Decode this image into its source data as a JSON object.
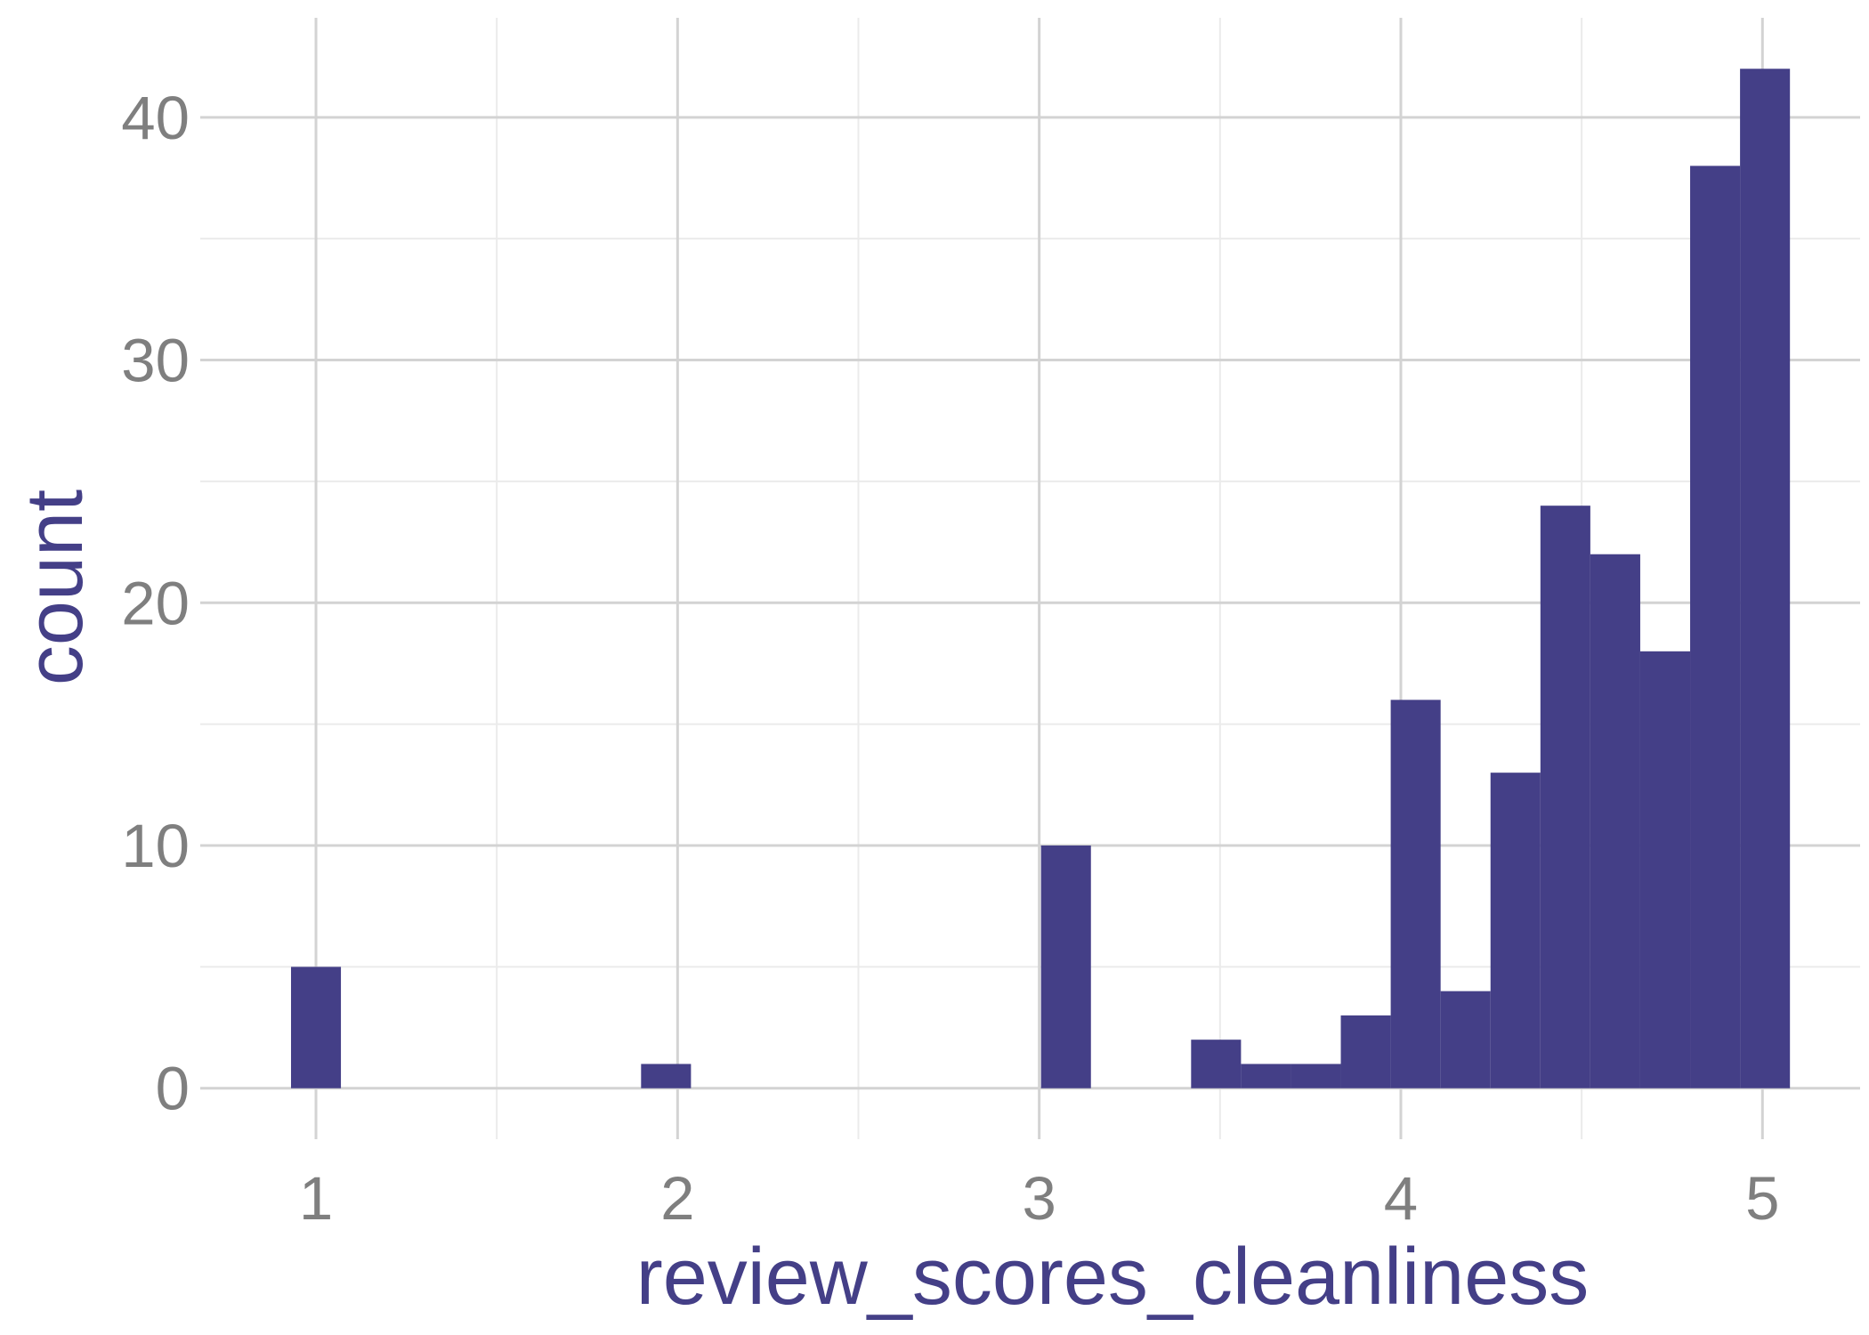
{
  "chart_data": {
    "type": "bar",
    "xlabel": "review_scores_cleanliness",
    "ylabel": "count",
    "bin_width": 0.138,
    "bin_centers": [
      1.0,
      1.968,
      3.074,
      3.489,
      3.627,
      3.765,
      3.903,
      4.041,
      4.179,
      4.317,
      4.455,
      4.593,
      4.731,
      4.869,
      5.007
    ],
    "values": [
      5,
      1,
      10,
      2,
      1,
      1,
      3,
      16,
      4,
      13,
      24,
      22,
      18,
      38,
      42
    ],
    "xlim": [
      0.68,
      5.27
    ],
    "ylim": [
      -2.1,
      44.1
    ],
    "x_ticks": [
      1,
      2,
      3,
      4,
      5
    ],
    "y_ticks": [
      0,
      10,
      20,
      30,
      40
    ],
    "x_minor_ticks": [
      1.5,
      2.5,
      3.5,
      4.5
    ],
    "y_minor_ticks": [
      5,
      15,
      25,
      35
    ],
    "grid": true,
    "bar_color": "#443f87",
    "title_color": "#443f87",
    "tick_label_color": "#7f7f7f",
    "major_grid_color": "#d3d3d3",
    "minor_grid_color": "#ebebeb"
  }
}
